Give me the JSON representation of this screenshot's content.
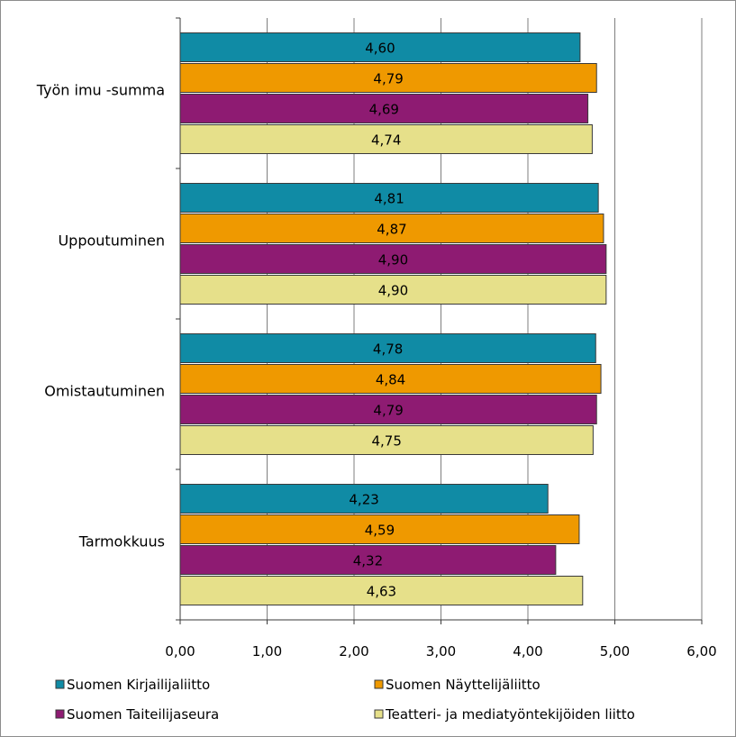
{
  "chart_data": {
    "type": "bar",
    "orientation": "horizontal",
    "categories": [
      "Työn imu -summa",
      "Uppoutuminen",
      "Omistautuminen",
      "Tarmokkuus"
    ],
    "series": [
      {
        "name": "Suomen Kirjailijaliitto",
        "color": "#108ba5",
        "values": [
          4.6,
          4.81,
          4.78,
          4.23
        ],
        "labels": [
          "4,60",
          "4,81",
          "4,78",
          "4,23"
        ]
      },
      {
        "name": "Suomen Näyttelijäliitto",
        "color": "#ef9900",
        "values": [
          4.79,
          4.87,
          4.84,
          4.59
        ],
        "labels": [
          "4,79",
          "4,87",
          "4,84",
          "4,59"
        ]
      },
      {
        "name": "Suomen Taiteilijaseura",
        "color": "#8e1b72",
        "values": [
          4.69,
          4.9,
          4.79,
          4.32
        ],
        "labels": [
          "4,69",
          "4,90",
          "4,79",
          "4,32"
        ]
      },
      {
        "name": "Teatteri- ja mediatyöntekijöiden liitto",
        "color": "#e6e08a",
        "values": [
          4.74,
          4.9,
          4.75,
          4.63
        ],
        "labels": [
          "4,74",
          "4,90",
          "4,75",
          "4,63"
        ]
      }
    ],
    "xlim": [
      0,
      6
    ],
    "xticks": [
      "0,00",
      "1,00",
      "2,00",
      "3,00",
      "4,00",
      "5,00",
      "6,00"
    ],
    "grid": "vertical",
    "legend_position": "bottom"
  }
}
